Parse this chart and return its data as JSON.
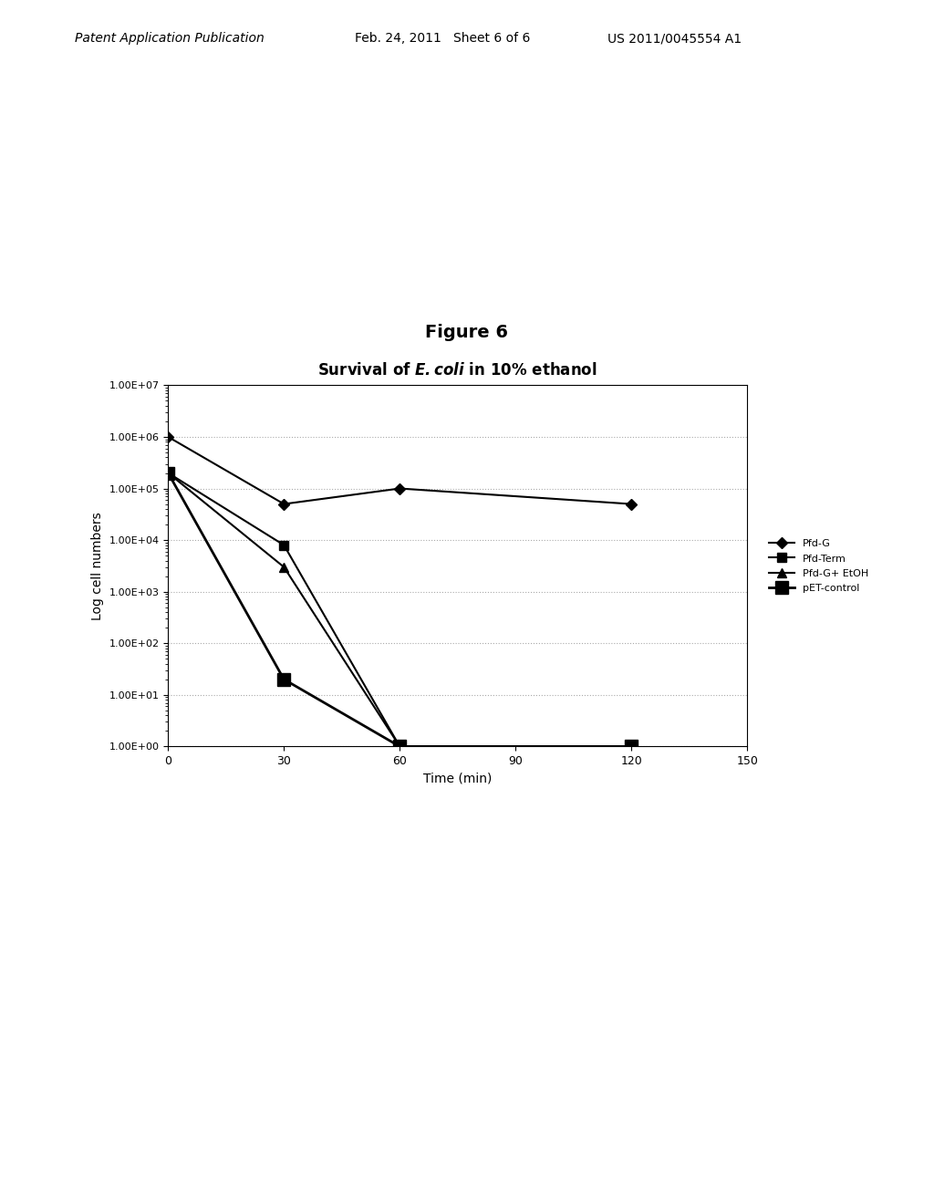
{
  "title_plain": "Survival of ",
  "title_italic": "E. coli",
  "title_plain2": " in 10% ethanol",
  "xlabel": "Time (min)",
  "ylabel": "Log cell numbers",
  "xlim": [
    0,
    150
  ],
  "ylim_log": [
    1.0,
    10000000.0
  ],
  "xticks": [
    0,
    30,
    60,
    90,
    120,
    150
  ],
  "series": [
    {
      "label": "Pfd-G",
      "x": [
        0,
        30,
        60,
        120
      ],
      "y": [
        1000000.0,
        50000.0,
        100000.0,
        50000.0
      ],
      "marker": "D",
      "markersize": 6,
      "color": "#000000",
      "linewidth": 1.5
    },
    {
      "label": "Pfd-Term",
      "x": [
        0,
        30,
        60,
        120
      ],
      "y": [
        200000.0,
        8000.0,
        1.0,
        1.0
      ],
      "marker": "s",
      "markersize": 7,
      "color": "#000000",
      "linewidth": 1.5
    },
    {
      "label": "Pfd-G+ EtOH",
      "x": [
        0,
        30,
        60
      ],
      "y": [
        200000.0,
        3000.0,
        1.0
      ],
      "marker": "^",
      "markersize": 7,
      "color": "#000000",
      "linewidth": 1.5
    },
    {
      "label": "pET-control",
      "x": [
        0,
        30,
        60,
        120
      ],
      "y": [
        200000.0,
        20.0,
        1.0,
        1.0
      ],
      "marker": "s",
      "markersize": 10,
      "color": "#000000",
      "linewidth": 2.0
    }
  ],
  "grid_color": "#aaaaaa",
  "grid_linestyle": ":",
  "background_color": "#ffffff",
  "plot_bg_color": "#ffffff",
  "fig_title": "Figure 6",
  "header_left": "Patent Application Publication",
  "header_mid": "Feb. 24, 2011   Sheet 6 of 6",
  "header_right": "US 2011/0045554 A1"
}
